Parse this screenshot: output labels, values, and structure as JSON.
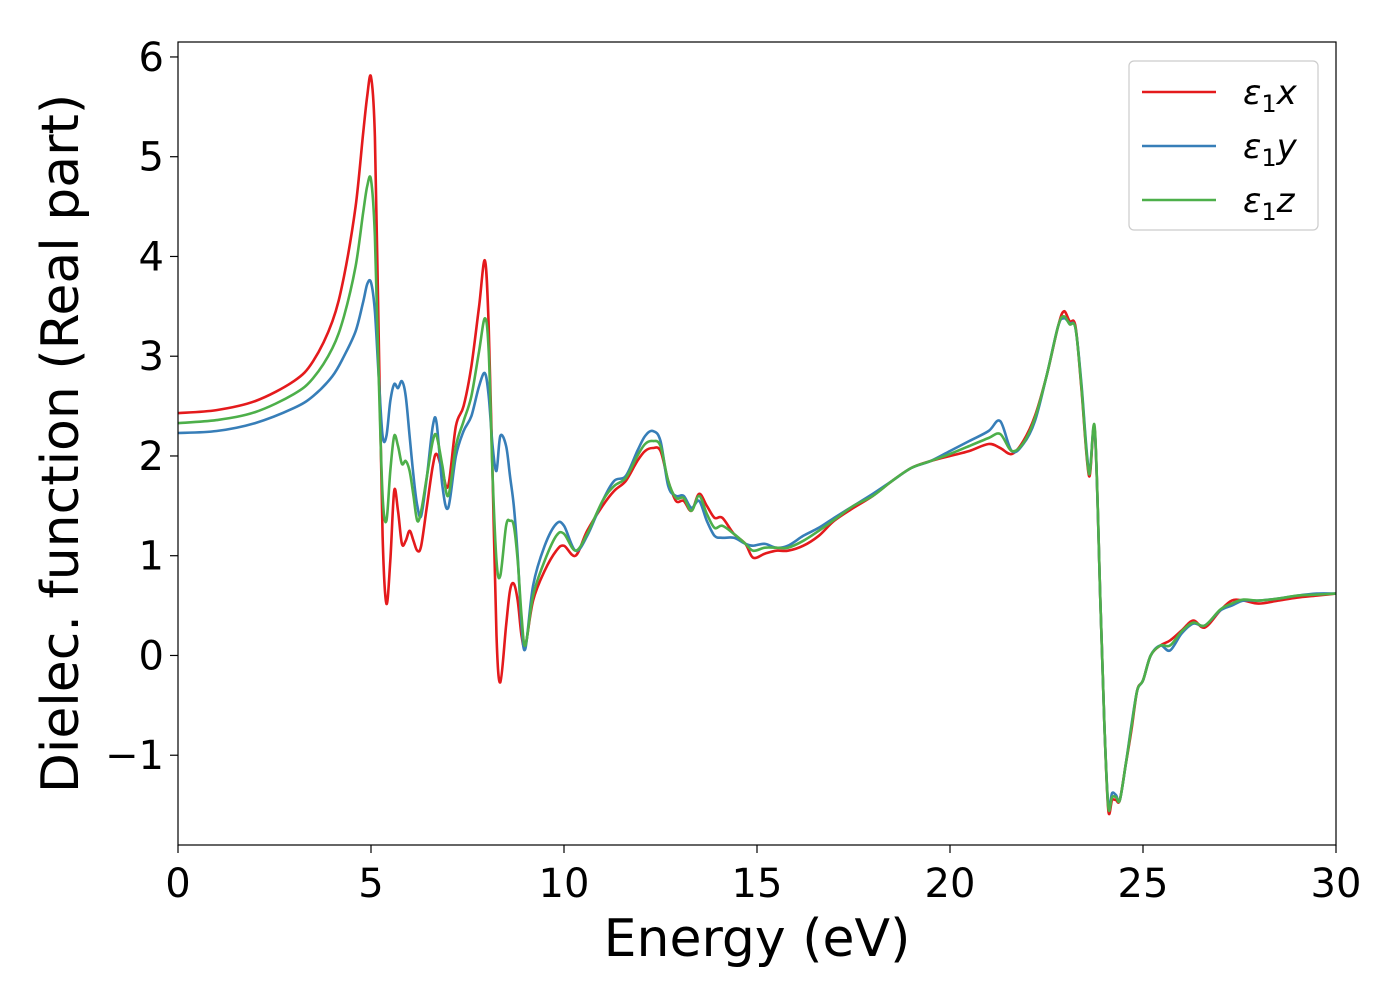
{
  "chart_data": {
    "type": "line",
    "xlabel": "Energy (eV)",
    "ylabel": "Dielec. function (Real part)",
    "xlim": [
      0,
      30
    ],
    "ylim": [
      -1.9,
      6.15
    ],
    "xticks": [
      0,
      5,
      10,
      15,
      20,
      25,
      30
    ],
    "yticks": [
      -1,
      0,
      1,
      2,
      3,
      4,
      5,
      6
    ],
    "xtick_labels": [
      "0",
      "5",
      "10",
      "15",
      "20",
      "25",
      "30"
    ],
    "ytick_labels": [
      "−1",
      "0",
      "1",
      "2",
      "3",
      "4",
      "5",
      "6"
    ],
    "grid": false,
    "legend_position": "top-right",
    "series": [
      {
        "name": "ε₁x",
        "legend_main": "ε",
        "legend_sub": "1",
        "legend_suffix": "x",
        "color": "#e41a1c",
        "x": [
          0,
          1,
          2,
          3,
          3.5,
          4,
          4.3,
          4.6,
          4.8,
          4.9,
          5.0,
          5.1,
          5.2,
          5.3,
          5.4,
          5.5,
          5.6,
          5.7,
          5.8,
          5.9,
          6.0,
          6.1,
          6.2,
          6.3,
          6.45,
          6.6,
          6.7,
          6.85,
          7.0,
          7.2,
          7.4,
          7.6,
          7.8,
          7.95,
          8.05,
          8.15,
          8.25,
          8.35,
          8.5,
          8.6,
          8.7,
          8.8,
          8.9,
          9.0,
          9.2,
          9.5,
          9.8,
          10.0,
          10.3,
          10.6,
          11.0,
          11.3,
          11.6,
          11.9,
          12.1,
          12.3,
          12.5,
          12.7,
          12.9,
          13.1,
          13.3,
          13.5,
          13.7,
          13.9,
          14.1,
          14.4,
          14.7,
          14.9,
          15.2,
          15.5,
          15.8,
          16.2,
          16.6,
          17.0,
          17.5,
          18.0,
          18.5,
          19.0,
          19.5,
          20.0,
          20.5,
          21.0,
          21.3,
          21.6,
          21.9,
          22.2,
          22.5,
          22.8,
          22.95,
          23.1,
          23.25,
          23.4,
          23.6,
          23.75,
          23.9,
          24.0,
          24.1,
          24.2,
          24.3,
          24.4,
          24.55,
          24.7,
          24.85,
          25.0,
          25.2,
          25.45,
          25.7,
          26.0,
          26.3,
          26.6,
          27.0,
          27.3,
          27.6,
          28.0,
          28.5,
          29.0,
          29.5,
          30.0
        ],
        "y": [
          2.43,
          2.46,
          2.55,
          2.75,
          2.95,
          3.35,
          3.8,
          4.5,
          5.25,
          5.6,
          5.8,
          5.2,
          3.2,
          1.2,
          0.52,
          0.95,
          1.65,
          1.45,
          1.12,
          1.15,
          1.25,
          1.15,
          1.05,
          1.1,
          1.5,
          1.9,
          2.02,
          1.85,
          1.7,
          2.3,
          2.5,
          2.9,
          3.5,
          3.96,
          3.3,
          1.8,
          0.2,
          -0.27,
          0.3,
          0.65,
          0.72,
          0.55,
          0.2,
          0.1,
          0.55,
          0.85,
          1.05,
          1.1,
          1.0,
          1.25,
          1.5,
          1.65,
          1.75,
          1.95,
          2.05,
          2.08,
          2.05,
          1.75,
          1.55,
          1.55,
          1.45,
          1.62,
          1.5,
          1.38,
          1.38,
          1.22,
          1.12,
          0.98,
          1.02,
          1.05,
          1.05,
          1.1,
          1.2,
          1.35,
          1.48,
          1.6,
          1.75,
          1.88,
          1.95,
          2.0,
          2.05,
          2.12,
          2.08,
          2.02,
          2.15,
          2.4,
          2.8,
          3.3,
          3.45,
          3.35,
          3.3,
          2.7,
          1.8,
          2.25,
          0.5,
          -0.7,
          -1.55,
          -1.45,
          -1.45,
          -1.45,
          -1.1,
          -0.75,
          -0.35,
          -0.25,
          0.0,
          0.1,
          0.15,
          0.25,
          0.35,
          0.28,
          0.45,
          0.55,
          0.55,
          0.52,
          0.55,
          0.58,
          0.6,
          0.62
        ]
      },
      {
        "name": "ε₁y",
        "legend_main": "ε",
        "legend_sub": "1",
        "legend_suffix": "y",
        "color": "#377eb8",
        "x": [
          0,
          1,
          2,
          3,
          3.5,
          4,
          4.3,
          4.6,
          4.8,
          4.9,
          5.0,
          5.1,
          5.2,
          5.3,
          5.4,
          5.5,
          5.6,
          5.7,
          5.8,
          5.9,
          6.0,
          6.1,
          6.2,
          6.3,
          6.45,
          6.6,
          6.7,
          6.85,
          7.0,
          7.2,
          7.4,
          7.6,
          7.8,
          7.95,
          8.05,
          8.15,
          8.25,
          8.35,
          8.5,
          8.6,
          8.7,
          8.8,
          8.9,
          9.0,
          9.2,
          9.5,
          9.8,
          10.0,
          10.3,
          10.6,
          11.0,
          11.3,
          11.6,
          11.9,
          12.1,
          12.3,
          12.5,
          12.7,
          12.9,
          13.1,
          13.3,
          13.5,
          13.7,
          13.9,
          14.1,
          14.4,
          14.7,
          14.9,
          15.2,
          15.5,
          15.8,
          16.2,
          16.6,
          17.0,
          17.5,
          18.0,
          18.5,
          19.0,
          19.5,
          20.0,
          20.5,
          21.0,
          21.3,
          21.6,
          21.9,
          22.2,
          22.5,
          22.8,
          22.95,
          23.1,
          23.25,
          23.4,
          23.6,
          23.75,
          23.9,
          24.0,
          24.1,
          24.2,
          24.3,
          24.4,
          24.55,
          24.7,
          24.85,
          25.0,
          25.2,
          25.45,
          25.7,
          26.0,
          26.3,
          26.6,
          27.0,
          27.3,
          27.6,
          28.0,
          28.5,
          29.0,
          29.5,
          30.0
        ],
        "y": [
          2.23,
          2.25,
          2.33,
          2.48,
          2.6,
          2.8,
          3.0,
          3.25,
          3.55,
          3.72,
          3.74,
          3.45,
          2.8,
          2.2,
          2.2,
          2.55,
          2.72,
          2.68,
          2.75,
          2.6,
          2.2,
          1.8,
          1.5,
          1.4,
          1.8,
          2.3,
          2.33,
          1.7,
          1.48,
          2.0,
          2.25,
          2.4,
          2.7,
          2.83,
          2.6,
          2.1,
          1.85,
          2.2,
          2.1,
          1.8,
          1.5,
          1.0,
          0.3,
          0.07,
          0.7,
          1.1,
          1.32,
          1.3,
          1.05,
          1.2,
          1.55,
          1.75,
          1.8,
          2.05,
          2.2,
          2.25,
          2.15,
          1.7,
          1.6,
          1.6,
          1.48,
          1.55,
          1.35,
          1.2,
          1.18,
          1.18,
          1.12,
          1.1,
          1.12,
          1.08,
          1.1,
          1.2,
          1.28,
          1.38,
          1.5,
          1.62,
          1.75,
          1.88,
          1.95,
          2.05,
          2.15,
          2.25,
          2.35,
          2.05,
          2.12,
          2.35,
          2.8,
          3.3,
          3.38,
          3.33,
          3.28,
          2.75,
          1.85,
          2.25,
          0.5,
          -0.7,
          -1.5,
          -1.38,
          -1.4,
          -1.45,
          -1.1,
          -0.7,
          -0.35,
          -0.25,
          0.0,
          0.1,
          0.05,
          0.22,
          0.32,
          0.3,
          0.45,
          0.5,
          0.55,
          0.55,
          0.57,
          0.6,
          0.62,
          0.62
        ]
      },
      {
        "name": "ε₁z",
        "legend_main": "ε",
        "legend_sub": "1",
        "legend_suffix": "z",
        "color": "#4daf4a",
        "x": [
          0,
          1,
          2,
          3,
          3.5,
          4,
          4.3,
          4.6,
          4.8,
          4.9,
          5.0,
          5.1,
          5.2,
          5.3,
          5.4,
          5.5,
          5.6,
          5.7,
          5.8,
          5.9,
          6.0,
          6.1,
          6.2,
          6.3,
          6.45,
          6.6,
          6.7,
          6.85,
          7.0,
          7.2,
          7.4,
          7.6,
          7.8,
          7.95,
          8.05,
          8.15,
          8.25,
          8.35,
          8.5,
          8.6,
          8.7,
          8.8,
          8.9,
          9.0,
          9.2,
          9.5,
          9.8,
          10.0,
          10.3,
          10.6,
          11.0,
          11.3,
          11.6,
          11.9,
          12.1,
          12.3,
          12.5,
          12.7,
          12.9,
          13.1,
          13.3,
          13.5,
          13.7,
          13.9,
          14.1,
          14.4,
          14.7,
          14.9,
          15.2,
          15.5,
          15.8,
          16.2,
          16.6,
          17.0,
          17.5,
          18.0,
          18.5,
          19.0,
          19.5,
          20.0,
          20.5,
          21.0,
          21.3,
          21.6,
          21.9,
          22.2,
          22.5,
          22.8,
          22.95,
          23.1,
          23.25,
          23.4,
          23.6,
          23.75,
          23.9,
          24.0,
          24.1,
          24.2,
          24.3,
          24.4,
          24.55,
          24.7,
          24.85,
          25.0,
          25.2,
          25.45,
          25.7,
          26.0,
          26.3,
          26.6,
          27.0,
          27.3,
          27.6,
          28.0,
          28.5,
          29.0,
          29.5,
          30.0
        ],
        "y": [
          2.33,
          2.36,
          2.44,
          2.62,
          2.78,
          3.08,
          3.4,
          3.9,
          4.45,
          4.7,
          4.77,
          4.2,
          2.8,
          1.6,
          1.35,
          1.85,
          2.2,
          2.1,
          1.92,
          1.95,
          1.85,
          1.6,
          1.35,
          1.45,
          1.8,
          2.15,
          2.2,
          1.9,
          1.6,
          2.1,
          2.35,
          2.6,
          3.05,
          3.38,
          3.05,
          1.8,
          0.95,
          0.8,
          1.3,
          1.35,
          1.3,
          0.95,
          0.4,
          0.1,
          0.6,
          0.95,
          1.2,
          1.22,
          1.05,
          1.22,
          1.55,
          1.7,
          1.78,
          2.0,
          2.12,
          2.15,
          2.1,
          1.75,
          1.58,
          1.58,
          1.45,
          1.6,
          1.42,
          1.28,
          1.3,
          1.22,
          1.12,
          1.05,
          1.08,
          1.08,
          1.08,
          1.15,
          1.25,
          1.36,
          1.5,
          1.6,
          1.75,
          1.88,
          1.95,
          2.02,
          2.1,
          2.18,
          2.22,
          2.05,
          2.13,
          2.38,
          2.8,
          3.3,
          3.4,
          3.32,
          3.28,
          2.72,
          1.82,
          2.28,
          0.5,
          -0.7,
          -1.52,
          -1.42,
          -1.42,
          -1.45,
          -1.1,
          -0.72,
          -0.35,
          -0.25,
          0.0,
          0.1,
          0.1,
          0.24,
          0.33,
          0.3,
          0.46,
          0.52,
          0.56,
          0.55,
          0.57,
          0.6,
          0.61,
          0.62
        ]
      }
    ]
  }
}
